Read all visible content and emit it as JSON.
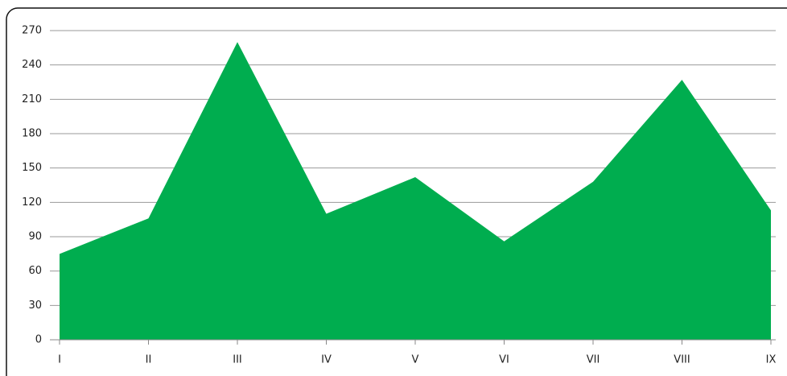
{
  "chart_data": {
    "type": "area",
    "categories": [
      "I",
      "II",
      "III",
      "IV",
      "V",
      "VI",
      "VII",
      "VIII",
      "IX"
    ],
    "values": [
      75,
      106,
      260,
      110,
      142,
      86,
      138,
      227,
      113
    ],
    "color": "#00ad4f",
    "ylim": [
      0,
      270
    ],
    "yticks": [
      0,
      30,
      60,
      90,
      120,
      150,
      180,
      210,
      240,
      270
    ],
    "grid": true
  }
}
